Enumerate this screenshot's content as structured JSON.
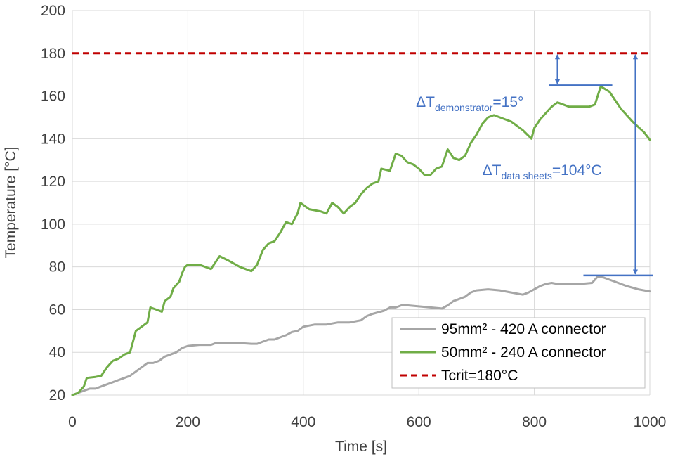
{
  "chart_data": {
    "type": "line",
    "xlabel": "Time [s]",
    "ylabel": "Temperature [°C]",
    "xlim": [
      0,
      1000
    ],
    "ylim": [
      20,
      200
    ],
    "xticks": [
      0,
      200,
      400,
      600,
      800,
      1000
    ],
    "yticks": [
      20,
      40,
      60,
      80,
      100,
      120,
      140,
      160,
      180,
      200
    ],
    "grid": true,
    "legend_position": "bottom-right",
    "series": [
      {
        "name": "95mm² - 420 A connector",
        "color": "#a6a6a6",
        "style": "solid",
        "points": [
          [
            0,
            20
          ],
          [
            10,
            21
          ],
          [
            20,
            22
          ],
          [
            30,
            23
          ],
          [
            40,
            23
          ],
          [
            50,
            24
          ],
          [
            60,
            25
          ],
          [
            70,
            26
          ],
          [
            80,
            27
          ],
          [
            90,
            28
          ],
          [
            100,
            29
          ],
          [
            110,
            31
          ],
          [
            120,
            33
          ],
          [
            130,
            35
          ],
          [
            140,
            35
          ],
          [
            150,
            36
          ],
          [
            160,
            38
          ],
          [
            170,
            39
          ],
          [
            180,
            40
          ],
          [
            190,
            42
          ],
          [
            200,
            43
          ],
          [
            220,
            43.5
          ],
          [
            240,
            43.5
          ],
          [
            250,
            44.5
          ],
          [
            280,
            44.5
          ],
          [
            310,
            44
          ],
          [
            320,
            44
          ],
          [
            330,
            45
          ],
          [
            340,
            46
          ],
          [
            350,
            46
          ],
          [
            360,
            47
          ],
          [
            370,
            48
          ],
          [
            380,
            49.5
          ],
          [
            390,
            50
          ],
          [
            400,
            52
          ],
          [
            420,
            53
          ],
          [
            440,
            53
          ],
          [
            460,
            54
          ],
          [
            480,
            54
          ],
          [
            500,
            55
          ],
          [
            510,
            57
          ],
          [
            520,
            58
          ],
          [
            540,
            59.5
          ],
          [
            550,
            61
          ],
          [
            560,
            61
          ],
          [
            570,
            62
          ],
          [
            580,
            62
          ],
          [
            600,
            61.5
          ],
          [
            620,
            61
          ],
          [
            640,
            60.5
          ],
          [
            650,
            62
          ],
          [
            660,
            64
          ],
          [
            670,
            65
          ],
          [
            680,
            66
          ],
          [
            690,
            68
          ],
          [
            700,
            69
          ],
          [
            720,
            69.5
          ],
          [
            740,
            69
          ],
          [
            760,
            68
          ],
          [
            780,
            67
          ],
          [
            790,
            68
          ],
          [
            800,
            69.5
          ],
          [
            810,
            71
          ],
          [
            820,
            72
          ],
          [
            830,
            72.5
          ],
          [
            840,
            72
          ],
          [
            860,
            72
          ],
          [
            880,
            72
          ],
          [
            900,
            72.5
          ],
          [
            910,
            75.5
          ],
          [
            920,
            75
          ],
          [
            940,
            73
          ],
          [
            960,
            71
          ],
          [
            980,
            69.5
          ],
          [
            1000,
            68.5
          ]
        ]
      },
      {
        "name": "50mm² - 240 A connector",
        "color": "#70ad47",
        "style": "solid",
        "points": [
          [
            0,
            20
          ],
          [
            10,
            21
          ],
          [
            20,
            24
          ],
          [
            25,
            28
          ],
          [
            40,
            28.5
          ],
          [
            50,
            29
          ],
          [
            60,
            33
          ],
          [
            70,
            36
          ],
          [
            80,
            37
          ],
          [
            90,
            39
          ],
          [
            100,
            40
          ],
          [
            105,
            45
          ],
          [
            110,
            50
          ],
          [
            115,
            51
          ],
          [
            120,
            52
          ],
          [
            130,
            54
          ],
          [
            135,
            61
          ],
          [
            145,
            60
          ],
          [
            155,
            59
          ],
          [
            160,
            64
          ],
          [
            170,
            66
          ],
          [
            175,
            70
          ],
          [
            185,
            73
          ],
          [
            190,
            77
          ],
          [
            195,
            80
          ],
          [
            200,
            81
          ],
          [
            220,
            81
          ],
          [
            240,
            79
          ],
          [
            255,
            85
          ],
          [
            270,
            83
          ],
          [
            290,
            80
          ],
          [
            300,
            79
          ],
          [
            310,
            78
          ],
          [
            320,
            81
          ],
          [
            330,
            88
          ],
          [
            340,
            91
          ],
          [
            350,
            92
          ],
          [
            360,
            96
          ],
          [
            370,
            101
          ],
          [
            380,
            100
          ],
          [
            390,
            105
          ],
          [
            395,
            110
          ],
          [
            410,
            107
          ],
          [
            430,
            106
          ],
          [
            440,
            105
          ],
          [
            450,
            110
          ],
          [
            460,
            108
          ],
          [
            470,
            105
          ],
          [
            480,
            108
          ],
          [
            490,
            110
          ],
          [
            500,
            114
          ],
          [
            510,
            117
          ],
          [
            520,
            119
          ],
          [
            530,
            120
          ],
          [
            535,
            126
          ],
          [
            550,
            125
          ],
          [
            560,
            133
          ],
          [
            570,
            132
          ],
          [
            580,
            129
          ],
          [
            590,
            128
          ],
          [
            600,
            126
          ],
          [
            610,
            123
          ],
          [
            620,
            123
          ],
          [
            630,
            126
          ],
          [
            640,
            127
          ],
          [
            650,
            135
          ],
          [
            660,
            131
          ],
          [
            670,
            130
          ],
          [
            680,
            132
          ],
          [
            690,
            138
          ],
          [
            700,
            142
          ],
          [
            710,
            147
          ],
          [
            720,
            150
          ],
          [
            730,
            151
          ],
          [
            740,
            150
          ],
          [
            750,
            149
          ],
          [
            760,
            148
          ],
          [
            770,
            146
          ],
          [
            780,
            144
          ],
          [
            795,
            140
          ],
          [
            800,
            145
          ],
          [
            810,
            149
          ],
          [
            820,
            152
          ],
          [
            830,
            155
          ],
          [
            840,
            157
          ],
          [
            850,
            156
          ],
          [
            860,
            155
          ],
          [
            880,
            155
          ],
          [
            895,
            155
          ],
          [
            905,
            156
          ],
          [
            915,
            164.5
          ],
          [
            930,
            162
          ],
          [
            950,
            154
          ],
          [
            970,
            148
          ],
          [
            990,
            143
          ],
          [
            1000,
            139.5
          ]
        ]
      },
      {
        "name": "Tcrit=180°C",
        "color": "#c00000",
        "style": "dashed",
        "points": [
          [
            0,
            180
          ],
          [
            1000,
            180
          ]
        ]
      }
    ],
    "annotations": [
      {
        "label_main": "ΔT",
        "label_sub": "demonstrator",
        "label_tail": "=15°",
        "color": "#4472c4",
        "arrow_x": 840,
        "arrow_from": 180,
        "arrow_to": 165,
        "ref_line_x": [
          825,
          935
        ],
        "ref_line_y": 165,
        "label_at": [
          595,
          155
        ]
      },
      {
        "label_main": "ΔT",
        "label_sub": "data sheets",
        "label_tail": "=104°C",
        "color": "#4472c4",
        "arrow_x": 975,
        "arrow_from": 180,
        "arrow_to": 76,
        "ref_line_x": [
          885,
          1005
        ],
        "ref_line_y": 76,
        "label_at": [
          710,
          123
        ]
      }
    ]
  }
}
